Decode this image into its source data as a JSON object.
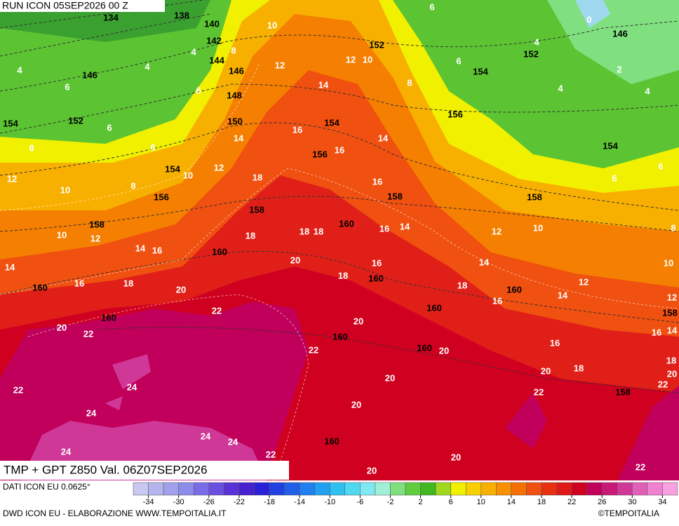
{
  "header": {
    "run": "RUN ICON 05SEP2026 00 Z"
  },
  "map": {
    "temperature_labels": [
      "10",
      "8",
      "4",
      "4",
      "4",
      "6",
      "6",
      "12",
      "12",
      "10",
      "14",
      "8",
      "6",
      "8",
      "6",
      "16",
      "16",
      "14",
      "14",
      "12",
      "10",
      "12",
      "10",
      "8",
      "18",
      "16",
      "16",
      "14",
      "18",
      "18",
      "10",
      "12",
      "14",
      "16",
      "18",
      "14",
      "16",
      "18",
      "20",
      "20",
      "18",
      "16",
      "12",
      "10",
      "8",
      "14",
      "10",
      "18",
      "16",
      "12",
      "14",
      "12",
      "20",
      "22",
      "22",
      "20",
      "22",
      "20",
      "16",
      "16",
      "14",
      "18",
      "20",
      "18",
      "20",
      "22",
      "20",
      "22",
      "24",
      "22",
      "20",
      "24",
      "24",
      "24",
      "24",
      "22",
      "20",
      "20",
      "22",
      "0",
      "2",
      "4",
      "4",
      "4",
      "6",
      "6",
      "6",
      "6"
    ],
    "height_labels": [
      "134",
      "138",
      "140",
      "142",
      "144",
      "146",
      "146",
      "148",
      "150",
      "154",
      "152",
      "154",
      "156",
      "158",
      "158",
      "160",
      "160",
      "160",
      "152",
      "152",
      "154",
      "146",
      "154",
      "156",
      "156",
      "154",
      "158",
      "158",
      "160",
      "160",
      "160",
      "160",
      "160",
      "160",
      "158",
      "158",
      "160"
    ]
  },
  "footer": {
    "title": "TMP + GPT Z850 Val. 06Z07SEP2026",
    "source": "DATI ICON EU 0.0625°",
    "credit": "DWD ICON EU - ELABORAZIONE WWW.TEMPOITALIA.IT",
    "copyright": "©TEMPOITALIA"
  },
  "colorbar": {
    "colors": [
      "#c8c8f0",
      "#b4b4ee",
      "#a0a0ec",
      "#8c8cea",
      "#7a6ce6",
      "#6a4ee0",
      "#5a30d8",
      "#4820d0",
      "#2a20d8",
      "#2040e0",
      "#2060e8",
      "#2080ee",
      "#20a0f0",
      "#30c0f0",
      "#50d8f0",
      "#80e8f0",
      "#a0f0d8",
      "#80e080",
      "#60cc40",
      "#40b820",
      "#a0d820",
      "#f0f000",
      "#f8d000",
      "#f8b000",
      "#f89000",
      "#f57000",
      "#f05010",
      "#e83010",
      "#e01818",
      "#d00020",
      "#c0005a",
      "#c81878",
      "#d03898",
      "#e060b8",
      "#f080d0",
      "#f8a0e0"
    ],
    "ticks": [
      "-34",
      "-30",
      "-26",
      "-22",
      "-18",
      "-14",
      "-10",
      "-6",
      "-2",
      "2",
      "6",
      "10",
      "14",
      "18",
      "22",
      "26",
      "30",
      "34"
    ]
  }
}
